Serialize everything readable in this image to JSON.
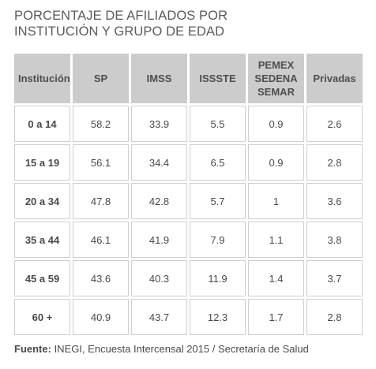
{
  "title": {
    "line1": "PORCENTAJE DE AFILIADOS POR",
    "line2": "INSTITUCIÓN Y GRUPO DE EDAD"
  },
  "chart_data": {
    "type": "table",
    "title": "PORCENTAJE DE AFILIADOS POR INSTITUCIÓN Y GRUPO DE EDAD",
    "columns": [
      {
        "key": "institucion",
        "lines": [
          "Institución"
        ]
      },
      {
        "key": "sp",
        "lines": [
          "SP"
        ]
      },
      {
        "key": "imss",
        "lines": [
          "IMSS"
        ]
      },
      {
        "key": "issste",
        "lines": [
          "ISSSTE"
        ]
      },
      {
        "key": "pemex",
        "lines": [
          "PEMEX",
          "SEDENA",
          "SEMAR"
        ]
      },
      {
        "key": "privadas",
        "lines": [
          "Privadas"
        ]
      }
    ],
    "rows": [
      {
        "label": "0 a 14",
        "values": [
          "58.2",
          "33.9",
          "5.5",
          "0.9",
          "2.6"
        ]
      },
      {
        "label": "15 a 19",
        "values": [
          "56.1",
          "34.4",
          "6.5",
          "0.9",
          "2.8"
        ]
      },
      {
        "label": "20 a 34",
        "values": [
          "47.8",
          "42.8",
          "5.7",
          "1",
          "3.6"
        ]
      },
      {
        "label": "35 a 44",
        "values": [
          "46.1",
          "41.9",
          "7.9",
          "1.1",
          "3.8"
        ]
      },
      {
        "label": "45 a 59",
        "values": [
          "43.6",
          "40.3",
          "11.9",
          "1.4",
          "3.7"
        ]
      },
      {
        "label": "60 +",
        "values": [
          "40.9",
          "43.7",
          "12.3",
          "1.7",
          "2.8"
        ]
      }
    ]
  },
  "footnote": {
    "label": "Fuente:",
    "text": " INEGI, Encuesta Intercensal 2015 / Secretaría de Salud"
  },
  "colors": {
    "header_bg": "#cccccc",
    "cell_border": "#cfcfcf",
    "text": "#4a4a4a"
  }
}
